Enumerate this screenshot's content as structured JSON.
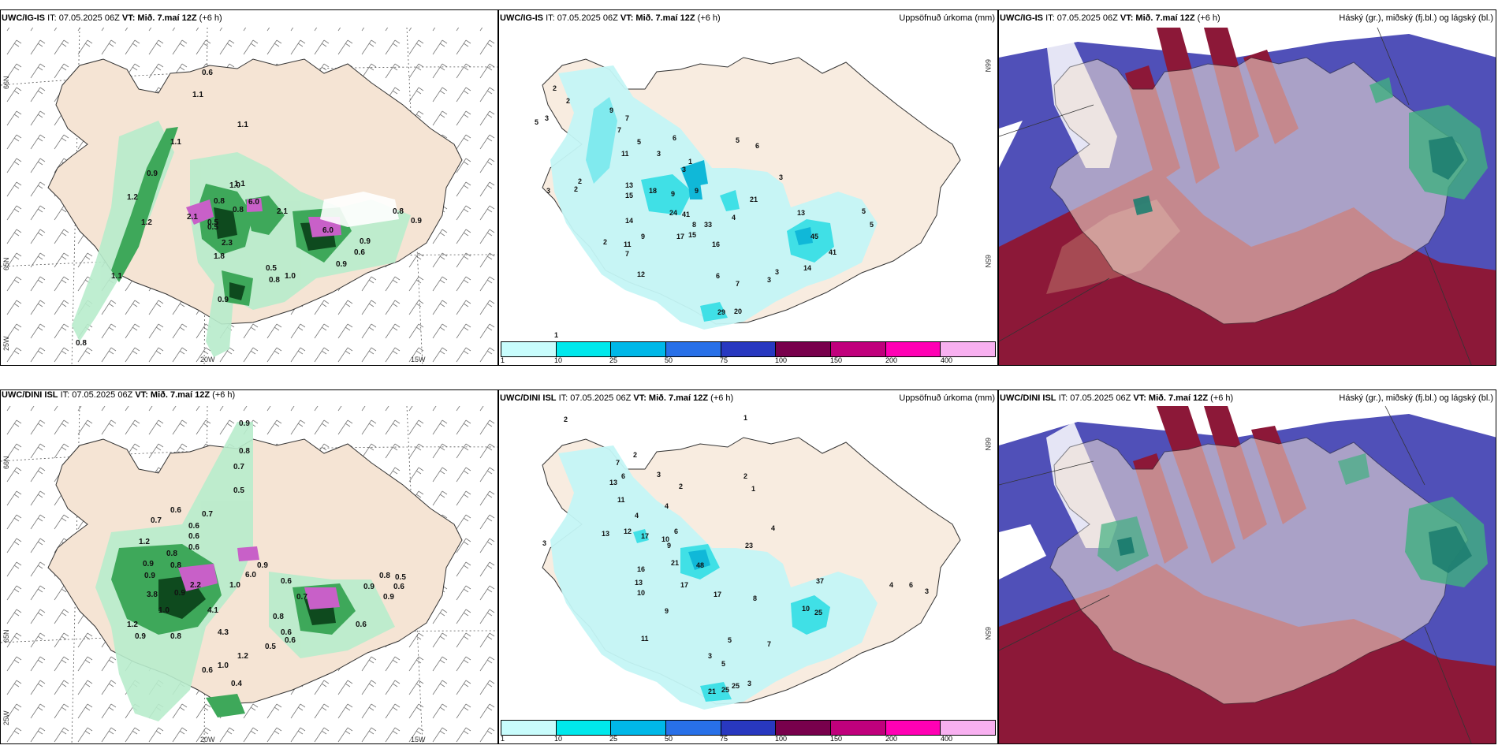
{
  "panels": {
    "top_left": {
      "model": "UWC/IG-IS",
      "it": "IT: 07.05.2025 06Z",
      "vt": "VT: Mið. 7.maí 12Z",
      "lead": "(+6 h)",
      "lat_labels": [
        "66N",
        "65N"
      ],
      "lon_labels": [
        "25W",
        "20W",
        "15W"
      ],
      "values": [
        "0.6",
        "1.1",
        "1.1",
        "1.1",
        "0.9",
        "1.2",
        "1.0",
        "0.8",
        "1.1",
        "2.1",
        "0.5",
        "6.0",
        "2.3",
        "1.8",
        "2.1",
        "0.5",
        "6.0",
        "0.9",
        "0.8",
        "0.9",
        "0.6",
        "0.9",
        "0.8",
        "1.0",
        "0.9",
        "0.5",
        "1.2",
        "1.1",
        "0.8",
        "0.8"
      ]
    },
    "top_middle": {
      "model": "UWC/IG-IS",
      "it": "IT: 07.05.2025 06Z",
      "vt": "VT: Mið. 7.maí 12Z",
      "lead": "(+6 h)",
      "right_title": "Uppsöfnuð úrkoma (mm)",
      "lat_labels": [
        "66N",
        "65N"
      ],
      "values": [
        "1",
        "1",
        "2",
        "3",
        "2",
        "5",
        "9",
        "7",
        "7",
        "5",
        "3",
        "11",
        "6",
        "2",
        "2",
        "1",
        "3",
        "13",
        "18",
        "15",
        "9",
        "9",
        "3",
        "21",
        "5",
        "6",
        "3",
        "24",
        "41",
        "33",
        "13",
        "14",
        "8",
        "17",
        "15",
        "16",
        "45",
        "41",
        "2",
        "11",
        "9",
        "4",
        "7",
        "12",
        "6",
        "7",
        "3",
        "29",
        "20",
        "14",
        "5",
        "5",
        "3",
        "1"
      ]
    },
    "top_right": {
      "model": "UWC/IG-IS",
      "it": "IT: 07.05.2025 06Z",
      "vt": "VT: Mið. 7.maí 12Z",
      "lead": "(+6 h)",
      "right_title": "Háský (gr.), miðský (fj.bl.) og lágský (bl.)"
    },
    "bottom_left": {
      "model": "UWC/DINI ISL",
      "it": "IT: 07.05.2025 06Z",
      "vt": "VT: Mið. 7.maí 12Z",
      "lead": "(+6 h)",
      "lat_labels": [
        "66N",
        "65N"
      ],
      "lon_labels": [
        "25W",
        "20W",
        "15W"
      ],
      "values": [
        "0.9",
        "0.8",
        "0.7",
        "0.5",
        "0.6",
        "0.7",
        "0.6",
        "0.6",
        "0.6",
        "0.7",
        "1.2",
        "0.8",
        "0.9",
        "0.9",
        "1.0",
        "6.0",
        "0.9",
        "0.8",
        "0.9",
        "2.2",
        "4.1",
        "3.8",
        "1.0",
        "0.6",
        "0.8",
        "0.6",
        "0.7",
        "0.9",
        "0.9",
        "0.5",
        "0.6",
        "0.8",
        "0.6",
        "0.6",
        "1.2",
        "0.9",
        "0.8",
        "4.3",
        "0.5",
        "1.2",
        "0.6",
        "1.0",
        "0.4"
      ]
    },
    "bottom_middle": {
      "model": "UWC/DINI ISL",
      "it": "IT: 07.05.2025 06Z",
      "vt": "VT: Mið. 7.maí 12Z",
      "lead": "(+6 h)",
      "right_title": "Uppsöfnuð úrkoma (mm)",
      "lat_labels": [
        "66N",
        "65N"
      ],
      "values": [
        "2",
        "1",
        "2",
        "7",
        "6",
        "3",
        "2",
        "4",
        "13",
        "11",
        "2",
        "1",
        "3",
        "4",
        "13",
        "12",
        "17",
        "10",
        "6",
        "9",
        "23",
        "21",
        "48",
        "16",
        "4",
        "13",
        "17",
        "37",
        "17",
        "9",
        "8",
        "10",
        "11",
        "10",
        "25",
        "5",
        "7",
        "3",
        "5",
        "21",
        "25",
        "25",
        "3",
        "4",
        "6",
        "3"
      ]
    },
    "bottom_right": {
      "model": "UWC/DINI ISL",
      "it": "IT: 07.05.2025 06Z",
      "vt": "VT: Mið. 7.maí 12Z",
      "lead": "(+6 h)",
      "right_title": "Háský (gr.), miðský (fj.bl.) og lágský (bl.)"
    }
  },
  "colorbar": {
    "labels": [
      "1",
      "10",
      "25",
      "50",
      "75",
      "100",
      "150",
      "200",
      "400"
    ],
    "colors": [
      "#c8fcfc",
      "#00e8ec",
      "#00b8e8",
      "#2870e8",
      "#2838c0",
      "#78004c",
      "#c0007c",
      "#ff00b4",
      "#f8b0f0"
    ]
  },
  "colors": {
    "land": "#f5e4d4",
    "precip_light": "#b8eccc",
    "precip_mid": "#3ea85a",
    "precip_dark": "#0e4a1e",
    "precip_high": "#c860c8",
    "cloud_high": "#8c1838",
    "cloud_mid": "#5050b8",
    "cloud_low": "#40b080",
    "accum_light": "#c4f6f6",
    "accum_mid": "#40e0e6",
    "accum_high": "#10b8d8"
  }
}
